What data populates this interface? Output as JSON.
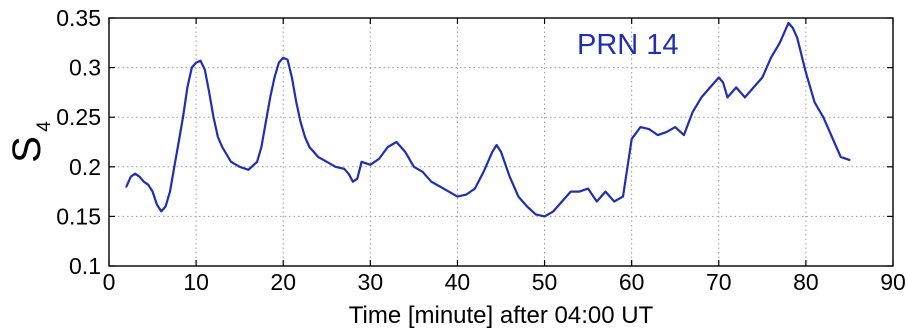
{
  "chart_data": {
    "type": "line",
    "title": "",
    "xlabel": "Time [minute] after 04:00 UT",
    "ylabel": {
      "main": "S",
      "subscript": "4"
    },
    "xlim": [
      0,
      90
    ],
    "ylim": [
      0.1,
      0.35
    ],
    "x_ticks": [
      0,
      10,
      20,
      30,
      40,
      50,
      60,
      70,
      80,
      90
    ],
    "y_ticks": [
      0.1,
      0.15,
      0.2,
      0.25,
      0.3,
      0.35
    ],
    "x_tick_labels": [
      "0",
      "10",
      "20",
      "30",
      "40",
      "50",
      "60",
      "70",
      "80",
      "90"
    ],
    "y_tick_labels": [
      "0.1",
      "0.15",
      "0.2",
      "0.25",
      "0.3",
      "0.35"
    ],
    "grid": true,
    "annotation": "PRN 14",
    "series": [
      {
        "color": "#1f2fb0",
        "x": [
          2,
          2.5,
          3,
          3.5,
          4,
          4.5,
          5,
          5.5,
          6,
          6.5,
          7,
          7.5,
          8,
          8.5,
          9,
          9.5,
          10,
          10.5,
          11,
          11.5,
          12,
          12.5,
          13,
          14,
          15,
          16,
          17,
          17.5,
          18,
          18.5,
          19,
          19.5,
          20,
          20.5,
          21,
          21.5,
          22,
          22.5,
          23,
          24,
          25,
          26,
          27,
          27.5,
          28,
          28.5,
          29,
          30,
          31,
          32,
          33,
          34,
          35,
          36,
          37,
          38,
          39,
          40,
          41,
          42,
          43,
          44,
          44.5,
          45,
          46,
          47,
          48,
          49,
          50,
          51,
          52,
          53,
          54,
          55,
          56,
          57,
          58,
          59,
          60,
          61,
          62,
          63,
          64,
          65,
          66,
          67,
          68,
          69,
          70,
          70.5,
          71,
          72,
          73,
          74,
          75,
          76,
          77,
          77.5,
          78,
          78.5,
          79,
          80,
          81,
          82,
          83,
          84,
          85
        ],
        "y": [
          0.18,
          0.19,
          0.193,
          0.19,
          0.185,
          0.182,
          0.175,
          0.162,
          0.155,
          0.16,
          0.175,
          0.2,
          0.225,
          0.25,
          0.28,
          0.3,
          0.305,
          0.307,
          0.298,
          0.275,
          0.25,
          0.23,
          0.22,
          0.205,
          0.2,
          0.197,
          0.205,
          0.22,
          0.245,
          0.27,
          0.29,
          0.305,
          0.31,
          0.308,
          0.29,
          0.265,
          0.245,
          0.23,
          0.22,
          0.21,
          0.205,
          0.2,
          0.198,
          0.193,
          0.185,
          0.188,
          0.205,
          0.202,
          0.208,
          0.22,
          0.225,
          0.215,
          0.2,
          0.195,
          0.185,
          0.18,
          0.175,
          0.17,
          0.172,
          0.178,
          0.195,
          0.215,
          0.222,
          0.215,
          0.19,
          0.17,
          0.16,
          0.152,
          0.15,
          0.155,
          0.165,
          0.175,
          0.175,
          0.178,
          0.165,
          0.175,
          0.165,
          0.17,
          0.228,
          0.24,
          0.238,
          0.232,
          0.235,
          0.24,
          0.232,
          0.255,
          0.27,
          0.28,
          0.29,
          0.285,
          0.27,
          0.28,
          0.27,
          0.28,
          0.29,
          0.31,
          0.325,
          0.335,
          0.345,
          0.34,
          0.33,
          0.295,
          0.265,
          0.25,
          0.23,
          0.21,
          0.207
        ]
      }
    ]
  }
}
